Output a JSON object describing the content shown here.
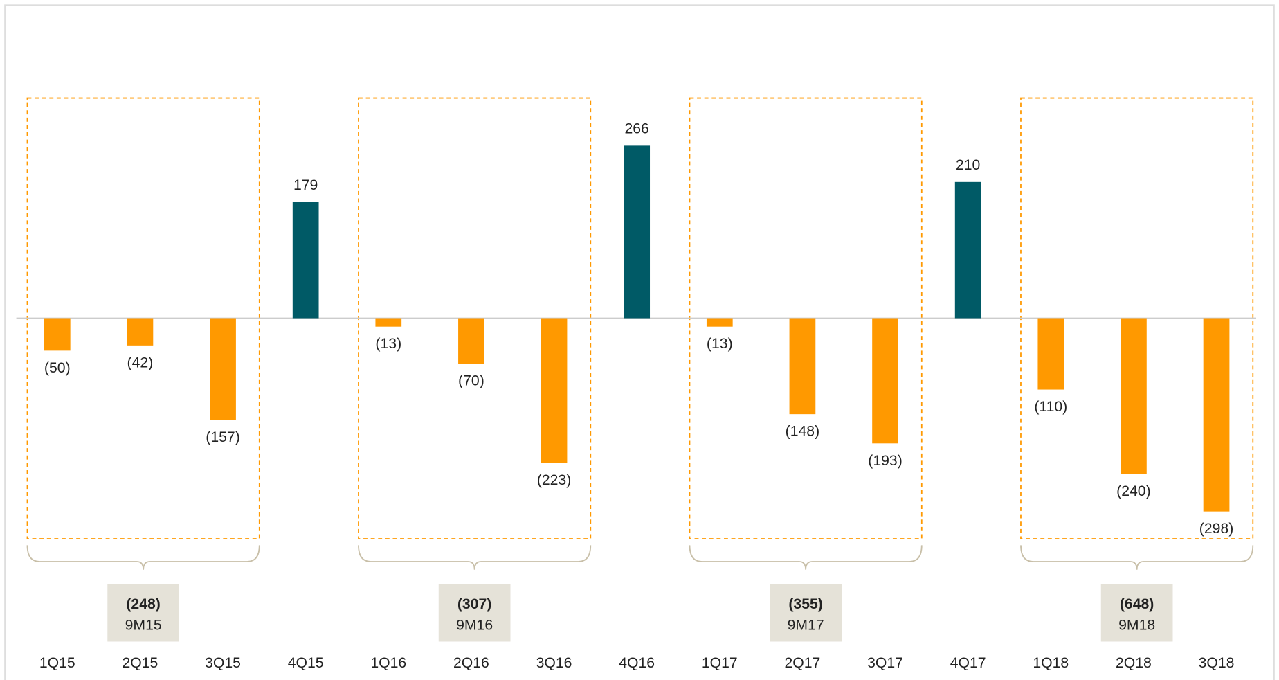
{
  "chart_data": {
    "type": "bar",
    "categories": [
      "1Q15",
      "2Q15",
      "3Q15",
      "4Q15",
      "1Q16",
      "2Q16",
      "3Q16",
      "4Q16",
      "1Q17",
      "2Q17",
      "3Q17",
      "4Q17",
      "1Q18",
      "2Q18",
      "3Q18"
    ],
    "values": [
      -50,
      -42,
      -157,
      179,
      -13,
      -70,
      -223,
      266,
      -13,
      -148,
      -193,
      210,
      -110,
      -240,
      -298
    ],
    "value_labels": [
      "(50)",
      "(42)",
      "(157)",
      "179",
      "(13)",
      "(70)",
      "(223)",
      "266",
      "(13)",
      "(148)",
      "(193)",
      "210",
      "(110)",
      "(240)",
      "(298)"
    ],
    "colors": [
      "#FF9900",
      "#FF9900",
      "#FF9900",
      "#005A66",
      "#FF9900",
      "#FF9900",
      "#FF9900",
      "#005A66",
      "#FF9900",
      "#FF9900",
      "#FF9900",
      "#005A66",
      "#FF9900",
      "#FF9900",
      "#FF9900"
    ],
    "ylim": [
      -340,
      420
    ],
    "groups": [
      {
        "label": "9M15",
        "value": -248,
        "value_label": "(248)",
        "members": [
          "1Q15",
          "2Q15",
          "3Q15"
        ]
      },
      {
        "label": "9M16",
        "value": -307,
        "value_label": "(307)",
        "members": [
          "1Q16",
          "2Q16",
          "3Q16"
        ]
      },
      {
        "label": "9M17",
        "value": -355,
        "value_label": "(355)",
        "members": [
          "1Q17",
          "2Q17",
          "3Q17"
        ]
      },
      {
        "label": "9M18",
        "value": -648,
        "value_label": "(648)",
        "members": [
          "1Q18",
          "2Q18",
          "3Q18"
        ]
      }
    ]
  }
}
